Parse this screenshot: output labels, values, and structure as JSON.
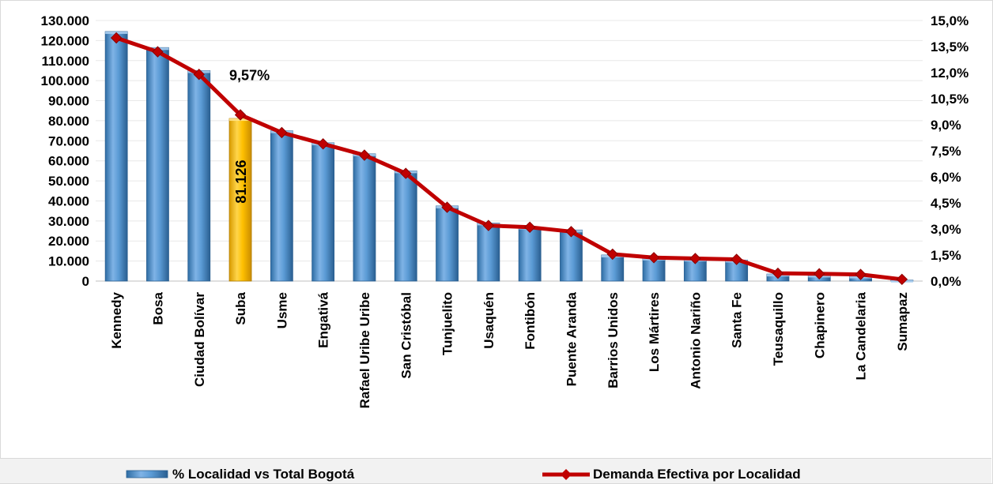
{
  "chart_data": {
    "type": "bar",
    "categories": [
      "Kennedy",
      "Bosa",
      "Ciudad Bolívar",
      "Suba",
      "Usme",
      "Engativá",
      "Rafael Uribe Uribe",
      "San Cristóbal",
      "Tunjuelito",
      "Usaquén",
      "Fontibón",
      "Puente Aranda",
      "Barrios Unidos",
      "Los Mártires",
      "Antonio Nariño",
      "Santa Fe",
      "Teusaquillo",
      "Chapinero",
      "La Candelaria",
      "Sumapaz"
    ],
    "series": [
      {
        "name": "% Localidad vs Total Bogotá",
        "type": "bar",
        "axis": "left",
        "values": [
          124500,
          116500,
          105000,
          81126,
          75000,
          69000,
          63500,
          55000,
          37500,
          29000,
          27000,
          25500,
          13000,
          11500,
          11000,
          10500,
          3500,
          3000,
          2500,
          500
        ]
      },
      {
        "name": "Demanda Efectiva por Localidad",
        "type": "line",
        "axis": "right",
        "values": [
          14.0,
          13.2,
          11.9,
          9.57,
          8.55,
          7.9,
          7.25,
          6.2,
          4.25,
          3.2,
          3.1,
          2.85,
          1.55,
          1.35,
          1.3,
          1.25,
          0.45,
          0.42,
          0.38,
          0.1
        ]
      }
    ],
    "y_left": {
      "ylim": [
        0,
        130000
      ],
      "ticks": [
        "0",
        "10.000",
        "20.000",
        "30.000",
        "40.000",
        "50.000",
        "60.000",
        "70.000",
        "80.000",
        "90.000",
        "100.000",
        "110.000",
        "120.000",
        "130.000"
      ]
    },
    "y_right": {
      "ylim": [
        0,
        15
      ],
      "ticks": [
        "0,0%",
        "1,5%",
        "3,0%",
        "4,5%",
        "6,0%",
        "7,5%",
        "9,0%",
        "10,5%",
        "12,0%",
        "13,5%",
        "15,0%"
      ]
    },
    "highlight": {
      "category": "Suba",
      "bar_label": "81.126",
      "line_label": "9,57%"
    },
    "grid": true,
    "legend_position": "bottom",
    "colors": {
      "bar": "#5b9bd5",
      "bar_dark": "#2e6da4",
      "bar_highlight": "#ffc000",
      "line": "#c00000",
      "grid": "#e8e8e8"
    }
  }
}
